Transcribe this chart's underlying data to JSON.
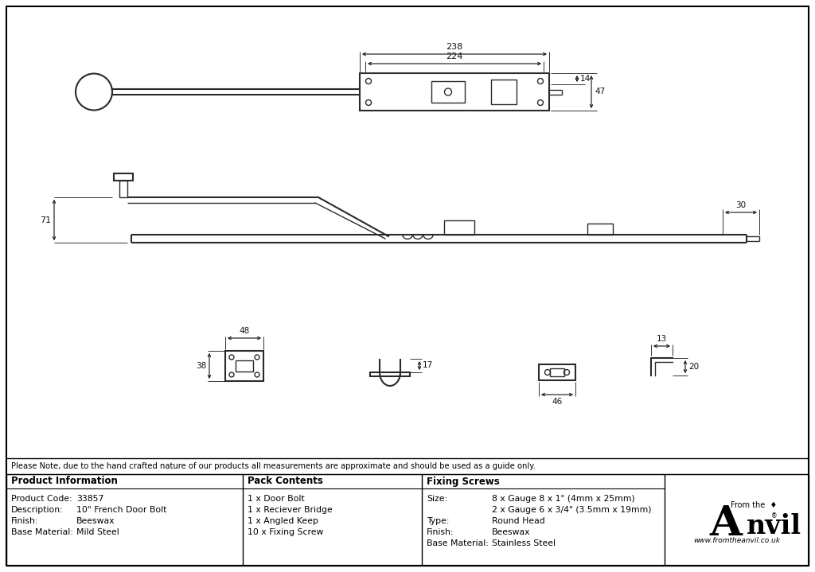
{
  "bg_color": "#ffffff",
  "line_color": "#2a2a2a",
  "dim_color": "#111111",
  "note_text": "Please Note, due to the hand crafted nature of our products all measurements are approximate and should be used as a guide only.",
  "table": {
    "col1_header": "Product Information",
    "col2_header": "Pack Contents",
    "col3_header": "Fixing Screws",
    "col1_rows": [
      [
        "Product Code:",
        "33857"
      ],
      [
        "Description:",
        "10\" French Door Bolt"
      ],
      [
        "Finish:",
        "Beeswax"
      ],
      [
        "Base Material:",
        "Mild Steel"
      ]
    ],
    "col2_rows": [
      "1 x Door Bolt",
      "1 x Reciever Bridge",
      "1 x Angled Keep",
      "10 x Fixing Screw"
    ],
    "col3_rows": [
      [
        "Size:",
        "8 x Gauge 8 x 1\" (4mm x 25mm)"
      ],
      [
        "",
        "2 x Gauge 6 x 3/4\" (3.5mm x 19mm)"
      ],
      [
        "Type:",
        "Round Head"
      ],
      [
        "Finish:",
        "Beeswax"
      ],
      [
        "Base Material:",
        "Stainless Steel"
      ]
    ]
  },
  "dims": {
    "d238": "238",
    "d224": "224",
    "d14": "14",
    "d47": "47",
    "d71": "71",
    "d30": "30",
    "d48": "48",
    "d38": "38",
    "d17": "17",
    "d13": "13",
    "d46": "46",
    "d20": "20"
  }
}
